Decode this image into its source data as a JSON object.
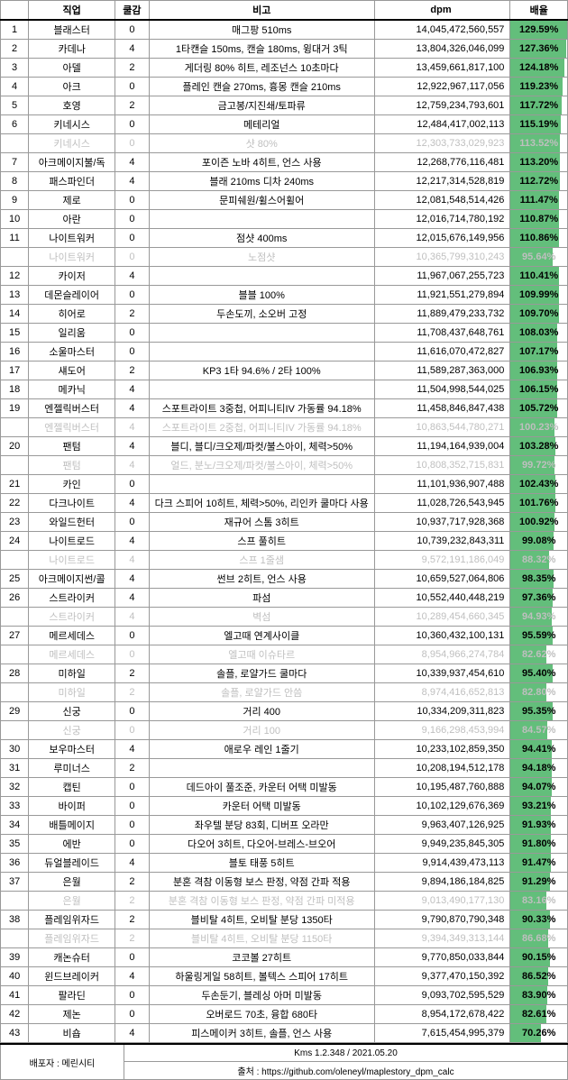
{
  "headers": {
    "job": "직업",
    "cool": "쿨감",
    "note": "비고",
    "dpm": "dpm",
    "rate": "배율"
  },
  "footer": {
    "dist": "배포자 : 메린시티",
    "version": "Kms 1.2.348  / 2021.05.20",
    "source": "출처 : https://github.com/oleneyl/maplestory_dpm_calc"
  },
  "rows": [
    {
      "n": "1",
      "job": "블래스터",
      "cool": "0",
      "note": "매그팡 510ms",
      "dpm": "14,045,472,560,557",
      "rate": "129.59%",
      "bar": 100,
      "dim": false
    },
    {
      "n": "2",
      "job": "카데나",
      "cool": "4",
      "note": "1타캔슬 150ms, 캔슬 180ms, 윙대거 3틱",
      "dpm": "13,804,326,046,099",
      "rate": "127.36%",
      "bar": 98,
      "dim": false
    },
    {
      "n": "3",
      "job": "아델",
      "cool": "2",
      "note": "게더링 80% 히트, 레조넌스 10초마다",
      "dpm": "13,459,661,817,100",
      "rate": "124.18%",
      "bar": 96,
      "dim": false
    },
    {
      "n": "4",
      "job": "아크",
      "cool": "0",
      "note": "플레인 캔슬 270ms, 흉몽 캔슬 210ms",
      "dpm": "12,922,967,117,056",
      "rate": "119.23%",
      "bar": 92,
      "dim": false
    },
    {
      "n": "5",
      "job": "호영",
      "cool": "2",
      "note": "금고봉/지진쇄/토파류",
      "dpm": "12,759,234,793,601",
      "rate": "117.72%",
      "bar": 91,
      "dim": false
    },
    {
      "n": "6",
      "job": "키네시스",
      "cool": "0",
      "note": "메테리얼",
      "dpm": "12,484,417,002,113",
      "rate": "115.19%",
      "bar": 89,
      "dim": false
    },
    {
      "n": "",
      "job": "키네시스",
      "cool": "0",
      "note": "샷 80%",
      "dpm": "12,303,733,029,923",
      "rate": "113.52%",
      "bar": 88,
      "dim": true
    },
    {
      "n": "7",
      "job": "아크메이지불/독",
      "cool": "4",
      "note": "포이즌 노바 4히트, 언스 사용",
      "dpm": "12,268,776,116,481",
      "rate": "113.20%",
      "bar": 87,
      "dim": false
    },
    {
      "n": "8",
      "job": "패스파인더",
      "cool": "4",
      "note": "블래 210ms 디차 240ms",
      "dpm": "12,217,314,528,819",
      "rate": "112.72%",
      "bar": 87,
      "dim": false
    },
    {
      "n": "9",
      "job": "제로",
      "cool": "0",
      "note": "문피쉐원/휠스어휠어",
      "dpm": "12,081,548,514,426",
      "rate": "111.47%",
      "bar": 86,
      "dim": false
    },
    {
      "n": "10",
      "job": "아란",
      "cool": "0",
      "note": "",
      "dpm": "12,016,714,780,192",
      "rate": "110.87%",
      "bar": 86,
      "dim": false
    },
    {
      "n": "11",
      "job": "나이트워커",
      "cool": "0",
      "note": "점샷 400ms",
      "dpm": "12,015,676,149,956",
      "rate": "110.86%",
      "bar": 86,
      "dim": false
    },
    {
      "n": "",
      "job": "나이트워커",
      "cool": "0",
      "note": "노점샷",
      "dpm": "10,365,799,310,243",
      "rate": "95.64%",
      "bar": 74,
      "dim": true
    },
    {
      "n": "12",
      "job": "카이저",
      "cool": "4",
      "note": "",
      "dpm": "11,967,067,255,723",
      "rate": "110.41%",
      "bar": 85,
      "dim": false
    },
    {
      "n": "13",
      "job": "데몬슬레이어",
      "cool": "0",
      "note": "블블 100%",
      "dpm": "11,921,551,279,894",
      "rate": "109.99%",
      "bar": 85,
      "dim": false
    },
    {
      "n": "14",
      "job": "히어로",
      "cool": "2",
      "note": "두손도끼, 소오버 고정",
      "dpm": "11,889,479,233,732",
      "rate": "109.70%",
      "bar": 85,
      "dim": false
    },
    {
      "n": "15",
      "job": "일리움",
      "cool": "0",
      "note": "",
      "dpm": "11,708,437,648,761",
      "rate": "108.03%",
      "bar": 83,
      "dim": false
    },
    {
      "n": "16",
      "job": "소울마스터",
      "cool": "0",
      "note": "",
      "dpm": "11,616,070,472,827",
      "rate": "107.17%",
      "bar": 83,
      "dim": false
    },
    {
      "n": "17",
      "job": "섀도어",
      "cool": "2",
      "note": "KP3 1타 94.6% / 2타 100%",
      "dpm": "11,589,287,363,000",
      "rate": "106.93%",
      "bar": 82,
      "dim": false
    },
    {
      "n": "18",
      "job": "메카닉",
      "cool": "4",
      "note": "",
      "dpm": "11,504,998,544,025",
      "rate": "106.15%",
      "bar": 82,
      "dim": false
    },
    {
      "n": "19",
      "job": "엔젤릭버스터",
      "cool": "4",
      "note": "스포트라이트 3중첩, 어피니티IV 가동률 94.18%",
      "dpm": "11,458,846,847,438",
      "rate": "105.72%",
      "bar": 82,
      "dim": false
    },
    {
      "n": "",
      "job": "엔젤릭버스터",
      "cool": "4",
      "note": "스포트라이트 2중첩, 어피니티IV 가동률 94.18%",
      "dpm": "10,863,544,780,271",
      "rate": "100.23%",
      "bar": 77,
      "dim": true
    },
    {
      "n": "20",
      "job": "팬텀",
      "cool": "4",
      "note": "블디, 블디/크오제/파컷/불스아이, 체력>50%",
      "dpm": "11,194,164,939,004",
      "rate": "103.28%",
      "bar": 80,
      "dim": false
    },
    {
      "n": "",
      "job": "팬텀",
      "cool": "4",
      "note": "얼드, 분노/크오제/파컷/불스아이, 체력>50%",
      "dpm": "10,808,352,715,831",
      "rate": "99.72%",
      "bar": 77,
      "dim": true
    },
    {
      "n": "21",
      "job": "카인",
      "cool": "0",
      "note": "",
      "dpm": "11,101,936,907,488",
      "rate": "102.43%",
      "bar": 79,
      "dim": false
    },
    {
      "n": "22",
      "job": "다크나이트",
      "cool": "4",
      "note": "다크 스피어 10히트, 체력>50%, 리인카 쿨마다 사용",
      "dpm": "11,028,726,543,945",
      "rate": "101.76%",
      "bar": 79,
      "dim": false
    },
    {
      "n": "23",
      "job": "와일드헌터",
      "cool": "0",
      "note": "재규어 스톰 3히트",
      "dpm": "10,937,717,928,368",
      "rate": "100.92%",
      "bar": 78,
      "dim": false
    },
    {
      "n": "24",
      "job": "나이트로드",
      "cool": "4",
      "note": "스프 풀히트",
      "dpm": "10,739,232,843,311",
      "rate": "99.08%",
      "bar": 76,
      "dim": false
    },
    {
      "n": "",
      "job": "나이트로드",
      "cool": "4",
      "note": "스프 1줄샘",
      "dpm": "9,572,191,186,049",
      "rate": "88.32%",
      "bar": 68,
      "dim": true
    },
    {
      "n": "25",
      "job": "아크메이지썬/콜",
      "cool": "4",
      "note": "썬브 2히트, 언스 사용",
      "dpm": "10,659,527,064,806",
      "rate": "98.35%",
      "bar": 76,
      "dim": false
    },
    {
      "n": "26",
      "job": "스트라이커",
      "cool": "4",
      "note": "파섬",
      "dpm": "10,552,440,448,219",
      "rate": "97.36%",
      "bar": 75,
      "dim": false
    },
    {
      "n": "",
      "job": "스트라이커",
      "cool": "4",
      "note": "벽섬",
      "dpm": "10,289,454,660,345",
      "rate": "94.93%",
      "bar": 73,
      "dim": true
    },
    {
      "n": "27",
      "job": "메르세데스",
      "cool": "0",
      "note": "엘고때 연계사이클",
      "dpm": "10,360,432,100,131",
      "rate": "95.59%",
      "bar": 74,
      "dim": false
    },
    {
      "n": "",
      "job": "메르세데스",
      "cool": "0",
      "note": "엘고때 이슈타르",
      "dpm": "8,954,966,274,784",
      "rate": "82.62%",
      "bar": 64,
      "dim": true
    },
    {
      "n": "28",
      "job": "미하일",
      "cool": "2",
      "note": "솔플, 로얄가드 쿨마다",
      "dpm": "10,339,937,454,610",
      "rate": "95.40%",
      "bar": 74,
      "dim": false
    },
    {
      "n": "",
      "job": "미하일",
      "cool": "2",
      "note": "솔플, 로얄가드 안씀",
      "dpm": "8,974,416,652,813",
      "rate": "82.80%",
      "bar": 64,
      "dim": true
    },
    {
      "n": "29",
      "job": "신궁",
      "cool": "0",
      "note": "거리 400",
      "dpm": "10,334,209,311,823",
      "rate": "95.35%",
      "bar": 74,
      "dim": false
    },
    {
      "n": "",
      "job": "신궁",
      "cool": "0",
      "note": "거리 100",
      "dpm": "9,166,298,453,994",
      "rate": "84.57%",
      "bar": 65,
      "dim": true
    },
    {
      "n": "30",
      "job": "보우마스터",
      "cool": "4",
      "note": "애로우 레인 1줄기",
      "dpm": "10,233,102,859,350",
      "rate": "94.41%",
      "bar": 73,
      "dim": false
    },
    {
      "n": "31",
      "job": "루미너스",
      "cool": "2",
      "note": "",
      "dpm": "10,208,194,512,178",
      "rate": "94.18%",
      "bar": 73,
      "dim": false
    },
    {
      "n": "32",
      "job": "캡틴",
      "cool": "0",
      "note": "데드아이 풀조준, 카운터 어택 미발동",
      "dpm": "10,195,487,760,888",
      "rate": "94.07%",
      "bar": 73,
      "dim": false
    },
    {
      "n": "33",
      "job": "바이퍼",
      "cool": "0",
      "note": "카운터 어택 미발동",
      "dpm": "10,102,129,676,369",
      "rate": "93.21%",
      "bar": 72,
      "dim": false
    },
    {
      "n": "34",
      "job": "배틀메이지",
      "cool": "0",
      "note": "좌우텔 분당 83회, 디버프 오라만",
      "dpm": "9,963,407,126,925",
      "rate": "91.93%",
      "bar": 71,
      "dim": false
    },
    {
      "n": "35",
      "job": "에반",
      "cool": "0",
      "note": "다오어 3히트, 다오어-브레스-브오어",
      "dpm": "9,949,235,845,305",
      "rate": "91.80%",
      "bar": 71,
      "dim": false
    },
    {
      "n": "36",
      "job": "듀얼블레이드",
      "cool": "4",
      "note": "블토 태풍 5히트",
      "dpm": "9,914,439,473,113",
      "rate": "91.47%",
      "bar": 71,
      "dim": false
    },
    {
      "n": "37",
      "job": "은월",
      "cool": "2",
      "note": "분혼 격참 이동형 보스 판정, 약점 간파 적용",
      "dpm": "9,894,186,184,825",
      "rate": "91.29%",
      "bar": 70,
      "dim": false
    },
    {
      "n": "",
      "job": "은월",
      "cool": "2",
      "note": "분혼 격참 이동형 보스 판정, 약점 간파 미적용",
      "dpm": "9,013,490,177,130",
      "rate": "83.16%",
      "bar": 64,
      "dim": true
    },
    {
      "n": "38",
      "job": "플레임위자드",
      "cool": "2",
      "note": "블비탈 4히트, 오비탈 분당 1350타",
      "dpm": "9,790,870,790,348",
      "rate": "90.33%",
      "bar": 70,
      "dim": false
    },
    {
      "n": "",
      "job": "플레임위자드",
      "cool": "2",
      "note": "블비탈 4히트, 오비탈 분당 1150타",
      "dpm": "9,394,349,313,144",
      "rate": "86.68%",
      "bar": 67,
      "dim": true
    },
    {
      "n": "39",
      "job": "캐논슈터",
      "cool": "0",
      "note": "코코볼 27히트",
      "dpm": "9,770,850,033,844",
      "rate": "90.15%",
      "bar": 70,
      "dim": false
    },
    {
      "n": "40",
      "job": "윈드브레이커",
      "cool": "4",
      "note": "하울링게일 58히트, 볼텍스 스피어 17히트",
      "dpm": "9,377,470,150,392",
      "rate": "86.52%",
      "bar": 67,
      "dim": false
    },
    {
      "n": "41",
      "job": "팔라딘",
      "cool": "0",
      "note": "두손둔기, 블레싱 아머 미발동",
      "dpm": "9,093,702,595,529",
      "rate": "83.90%",
      "bar": 65,
      "dim": false
    },
    {
      "n": "42",
      "job": "제논",
      "cool": "0",
      "note": "오버로드 70초, 융합 680타",
      "dpm": "8,954,172,678,422",
      "rate": "82.61%",
      "bar": 64,
      "dim": false
    },
    {
      "n": "43",
      "job": "비숍",
      "cool": "4",
      "note": "피스메이커 3히트, 솔플, 언스 사용",
      "dpm": "7,615,454,995,379",
      "rate": "70.26%",
      "bar": 54,
      "dim": false
    }
  ]
}
